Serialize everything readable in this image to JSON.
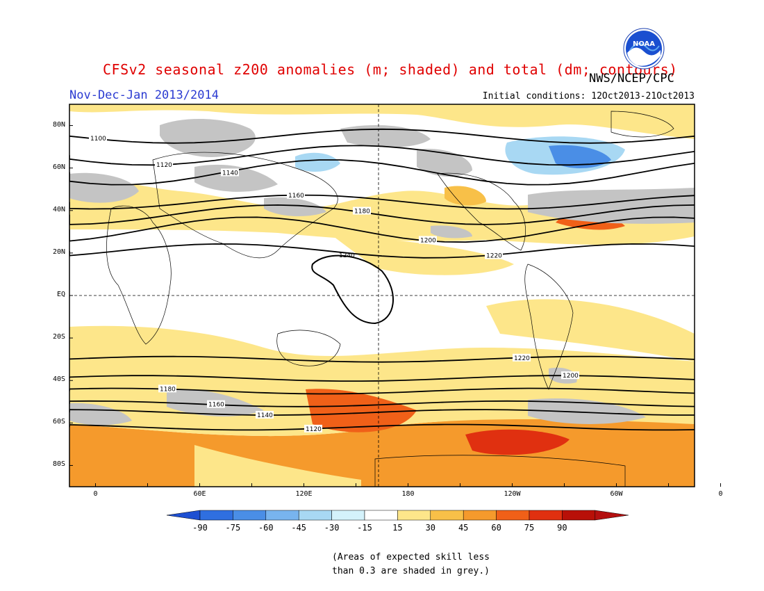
{
  "title": "CFSv2 seasonal z200 anomalies (m; shaded) and total (dm; contours)",
  "agency": "NWS/NCEP/CPC",
  "logo_text": "NOAA",
  "period": "Nov-Dec-Jan 2013/2014",
  "initial_conditions": "Initial conditions: 12Oct2013-21Oct2013",
  "lat_labels": [
    "80N",
    "60N",
    "40N",
    "20N",
    "EQ",
    "20S",
    "40S",
    "60S",
    "80S"
  ],
  "lon_labels": [
    "0",
    "60E",
    "120E",
    "180",
    "120W",
    "60W",
    "0"
  ],
  "colorbar": {
    "labels": [
      "-90",
      "-75",
      "-60",
      "-45",
      "-30",
      "-15",
      "15",
      "30",
      "45",
      "60",
      "75",
      "90"
    ],
    "colors": [
      "#1e50d2",
      "#2f6fe0",
      "#4a8ee6",
      "#78b4ee",
      "#a8d8f3",
      "#d4f2fb",
      "#ffffff",
      "#fde68a",
      "#f8c048",
      "#f59a2c",
      "#f06018",
      "#e03010",
      "#b81008",
      "#b41010"
    ]
  },
  "note_line1": "(Areas of expected skill less",
  "note_line2": "than 0.3 are shaded in grey.)",
  "contours": [
    {
      "label": "1100",
      "lat": 75
    },
    {
      "label": "1120",
      "lat": 66
    },
    {
      "label": "1140",
      "lat": 58
    },
    {
      "label": "1160",
      "lat": 44
    },
    {
      "label": "1180",
      "lat": 38
    },
    {
      "label": "1200",
      "lat": 31
    },
    {
      "label": "1220",
      "lat": 21
    },
    {
      "label": "1240",
      "lat": 15
    },
    {
      "label": "1220",
      "lat": -30
    },
    {
      "label": "1200",
      "lat": -39
    },
    {
      "label": "1180",
      "lat": -45
    },
    {
      "label": "1160",
      "lat": -51
    },
    {
      "label": "1140",
      "lat": -55
    },
    {
      "label": "1120",
      "lat": -62
    }
  ]
}
